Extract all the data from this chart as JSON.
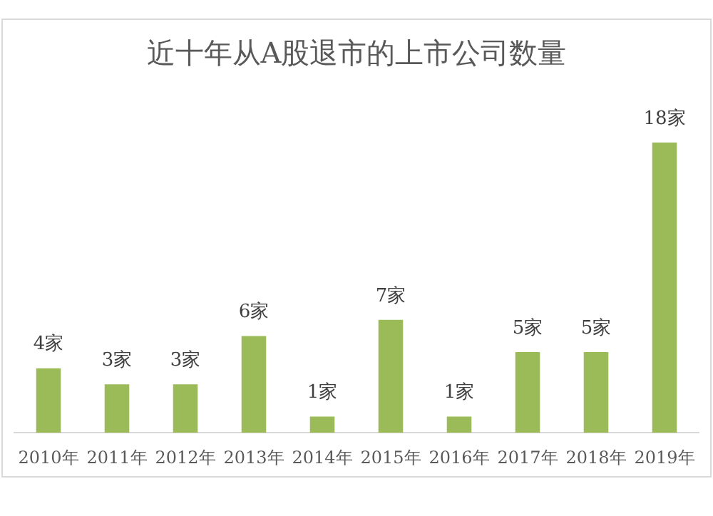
{
  "chart_data": {
    "type": "bar",
    "title": "近十年从A股退市的上市公司数量",
    "categories": [
      "2010年",
      "2011年",
      "2012年",
      "2013年",
      "2014年",
      "2015年",
      "2016年",
      "2017年",
      "2018年",
      "2019年"
    ],
    "values": [
      4,
      3,
      3,
      6,
      1,
      7,
      1,
      5,
      5,
      18
    ],
    "value_labels": [
      "4家",
      "3家",
      "3家",
      "6家",
      "1家",
      "7家",
      "1家",
      "5家",
      "5家",
      "18家"
    ],
    "color": "#9bbb59",
    "grid": false,
    "legend": false
  }
}
